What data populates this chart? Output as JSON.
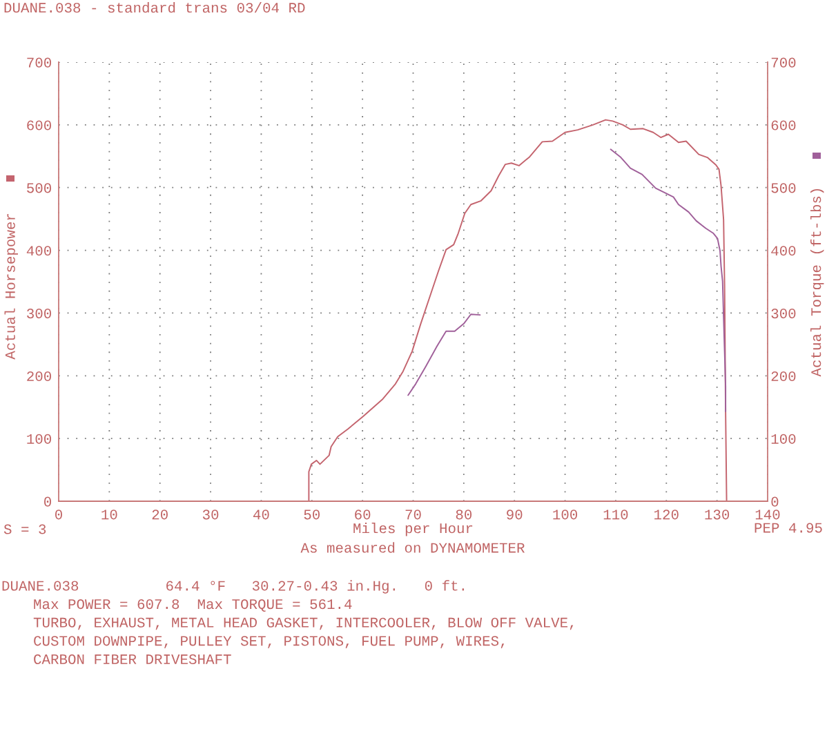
{
  "chart_data": {
    "type": "line",
    "title": "DUANE.038 - standard trans 03/04 RD",
    "xlabel": "Miles per Hour",
    "ylabel": "Actual Horsepower",
    "y2label": "Actual Torque (ft-lbs)",
    "annotations": [
      "S = 3",
      "PEP 4.95",
      "As measured on DYNAMOMETER",
      "DUANE.038          64.4 °F   30.27-0.43 in.Hg.   0 ft.",
      "Max POWER = 607.8  Max TORQUE = 561.4",
      "TURBO, EXHAUST, METAL HEAD GASKET, INTERCOOLER, BLOW OFF VALVE,",
      "CUSTOM DOWNPIPE, PULLEY SET, PISTONS, FUEL PUMP, WIRES,",
      "CARBON FIBER DRIVESHAFT"
    ],
    "series": [
      {
        "color": "#c4646e",
        "x": [
          49.4,
          49.4,
          49.9,
          50.9,
          51.6,
          53.4,
          53.8,
          55.1,
          57.1,
          60.1,
          64.0,
          66.5,
          68.0,
          69.8,
          71.5,
          73.5,
          75.0,
          76.5,
          78.0,
          78.9,
          80.2,
          81.4,
          83.4,
          85.4,
          86.9,
          88.2,
          89.4,
          90.9,
          93.0,
          95.5,
          97.5,
          100.0,
          102.5,
          105.5,
          108.0,
          109.4,
          111.4,
          112.9,
          115.4,
          117.4,
          118.9,
          120.4,
          122.4,
          123.9,
          126.4,
          128.1,
          129.8,
          130.4,
          130.8,
          131.3,
          131.5,
          131.7,
          131.9
        ],
        "values": [
          0,
          47,
          59,
          65,
          59,
          73,
          87,
          103,
          115,
          135,
          163,
          187,
          207,
          239,
          283,
          331,
          367,
          401,
          409,
          427,
          459,
          473,
          479,
          495,
          519,
          537,
          539,
          535,
          549,
          573,
          574,
          588,
          592,
          600,
          608,
          606,
          600,
          593,
          594,
          588,
          580,
          585,
          572,
          574,
          553,
          548,
          536,
          529,
          503,
          449,
          343,
          143,
          0
        ]
      },
      {
        "color": "#a0609a",
        "axis": "y2",
        "x": [
          69.0,
          70.5,
          72.5,
          74.7,
          76.5,
          78.2,
          80.0,
          81.4,
          83.2,
          96,
          109.0,
          110.9,
          112.9,
          115.2,
          117.9,
          119.9,
          121.4,
          122.4,
          124.4,
          125.9,
          127.8,
          129.3,
          130.1,
          130.6,
          130.8,
          131.1,
          131.7,
          131.7
        ],
        "values": [
          169,
          187,
          215,
          247,
          271,
          271,
          283,
          298,
          297,
          null,
          561,
          549,
          531,
          521,
          499,
          491,
          485,
          473,
          461,
          447,
          435,
          427,
          419,
          399,
          375,
          351,
          183,
          143
        ]
      }
    ],
    "xlim": [
      0,
      140
    ],
    "xticks": [
      0,
      10,
      20,
      30,
      40,
      50,
      60,
      70,
      80,
      90,
      100,
      110,
      120,
      130,
      140
    ],
    "ylim": [
      0,
      700
    ],
    "yticks": [
      0,
      100,
      200,
      300,
      400,
      500,
      600,
      700
    ],
    "y2lim": [
      0,
      700
    ],
    "y2ticks": [
      0,
      100,
      200,
      300,
      400,
      500,
      600,
      700
    ],
    "grid": true,
    "line_style": "solid"
  }
}
